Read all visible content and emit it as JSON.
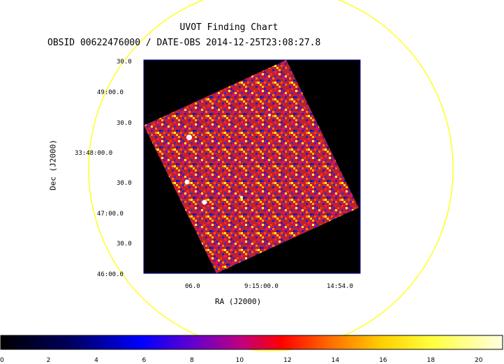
{
  "header": {
    "title": "UVOT Finding Chart",
    "subtitle": "OBSID 00622476000 / DATE-OBS 2014-12-25T23:08:27.8"
  },
  "axes": {
    "ylabel": "Dec (J2000)",
    "xlabel": "RA (J2000)",
    "yticks": [
      "30.0",
      "49:00.0",
      "30.0",
      "33:48:00.0",
      "30.0",
      "47:00.0",
      "30.0",
      "46:00.0"
    ],
    "xticks": [
      "06.0",
      "9:15:00.0",
      "14:54.0"
    ]
  },
  "colorbar": {
    "ticks": [
      "0",
      "2",
      "4",
      "6",
      "8",
      "10",
      "12",
      "14",
      "16",
      "18",
      "20"
    ],
    "min": 0,
    "max": 21
  },
  "colors": {
    "circle": "#ffff00",
    "frame": "#0000aa",
    "background": "#000000"
  }
}
